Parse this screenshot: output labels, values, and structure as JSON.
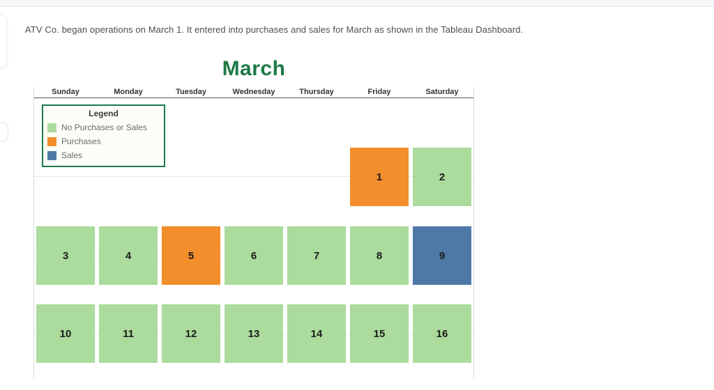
{
  "page": {
    "instruction": "ATV Co. began operations on March 1. It entered into purchases and sales for March as shown in the Tableau Dashboard."
  },
  "dashboard": {
    "title": "March",
    "title_color": "#1e7a46",
    "legend_border_color": "#1b7a4b",
    "day_headers": [
      "Sunday",
      "Monday",
      "Tuesday",
      "Wednesday",
      "Thursday",
      "Friday",
      "Saturday"
    ],
    "legend": {
      "title": "Legend",
      "items": [
        {
          "label": "No Purchases or Sales",
          "key": "none",
          "color": "#abdb9d"
        },
        {
          "label": "Purchases",
          "key": "purchases",
          "color": "#f28e2b"
        },
        {
          "label": "Sales",
          "key": "sales",
          "color": "#4e79a7"
        }
      ]
    },
    "colors": {
      "none": "#abdb9d",
      "purchases": "#f28e2b",
      "sales": "#4e79a7"
    },
    "weeks": [
      [
        {
          "day": 1,
          "weekday": 5,
          "status": "purchases"
        },
        {
          "day": 2,
          "weekday": 6,
          "status": "none"
        }
      ],
      [
        {
          "day": 3,
          "weekday": 0,
          "status": "none"
        },
        {
          "day": 4,
          "weekday": 1,
          "status": "none"
        },
        {
          "day": 5,
          "weekday": 2,
          "status": "purchases"
        },
        {
          "day": 6,
          "weekday": 3,
          "status": "none"
        },
        {
          "day": 7,
          "weekday": 4,
          "status": "none"
        },
        {
          "day": 8,
          "weekday": 5,
          "status": "none"
        },
        {
          "day": 9,
          "weekday": 6,
          "status": "sales"
        }
      ],
      [
        {
          "day": 10,
          "weekday": 0,
          "status": "none"
        },
        {
          "day": 11,
          "weekday": 1,
          "status": "none"
        },
        {
          "day": 12,
          "weekday": 2,
          "status": "none"
        },
        {
          "day": 13,
          "weekday": 3,
          "status": "none"
        },
        {
          "day": 14,
          "weekday": 4,
          "status": "none"
        },
        {
          "day": 15,
          "weekday": 5,
          "status": "none"
        },
        {
          "day": 16,
          "weekday": 6,
          "status": "none"
        }
      ]
    ]
  }
}
